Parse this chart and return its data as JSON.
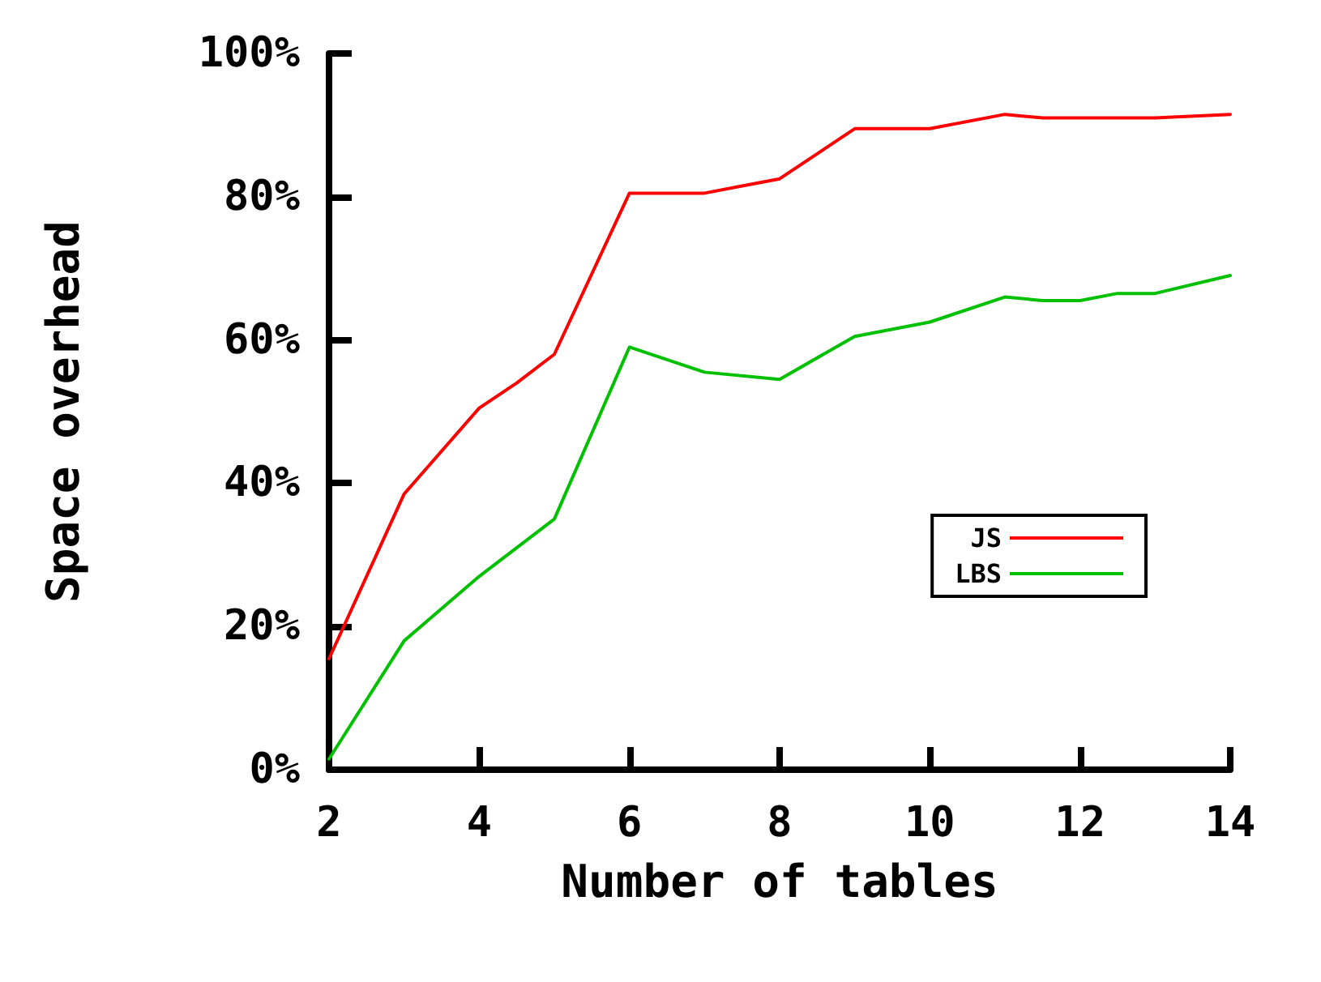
{
  "chart_data": {
    "type": "line",
    "xlabel": "Number of tables",
    "ylabel": "Space overhead",
    "xlim": [
      2,
      14
    ],
    "xticks": [
      2,
      4,
      6,
      8,
      10,
      12,
      14
    ],
    "ylim": [
      0,
      100
    ],
    "yticks": [
      {
        "value": 0,
        "label": "0%"
      },
      {
        "value": 20,
        "label": "20%"
      },
      {
        "value": 40,
        "label": "40%"
      },
      {
        "value": 60,
        "label": "60%"
      },
      {
        "value": 80,
        "label": "80%"
      },
      {
        "value": 100,
        "label": "100%"
      }
    ],
    "grid": false,
    "legend": "right",
    "marker": "none",
    "line_style": "solid",
    "series": [
      {
        "name": "JS",
        "color": "#ff0000",
        "x": [
          2,
          3,
          4,
          4.5,
          5,
          6,
          7,
          7.5,
          8,
          9,
          10,
          11,
          11.5,
          13,
          14
        ],
        "values": [
          15.5,
          38.5,
          50.5,
          54,
          58,
          80.5,
          80.5,
          81.5,
          82.5,
          89.5,
          89.5,
          91.5,
          91,
          91,
          91.5
        ]
      },
      {
        "name": "LBS",
        "color": "#00c000",
        "x": [
          2,
          3,
          4,
          5,
          6,
          7,
          8,
          9,
          10,
          11,
          11.5,
          12,
          12.5,
          13,
          14
        ],
        "values": [
          1.5,
          18,
          27,
          35,
          59,
          55.5,
          54.5,
          60.5,
          62.5,
          66,
          65.5,
          65.5,
          66.5,
          66.5,
          69
        ]
      }
    ]
  }
}
